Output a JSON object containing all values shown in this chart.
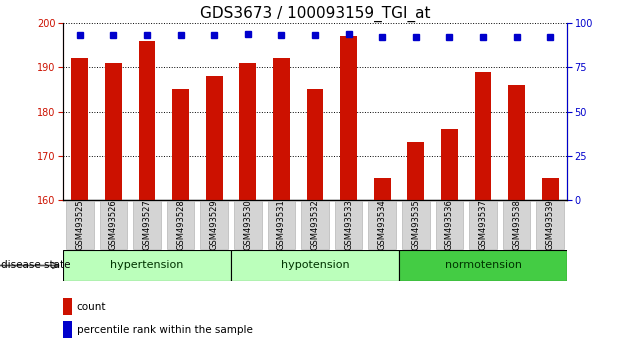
{
  "title": "GDS3673 / 100093159_TGI_at",
  "samples": [
    "GSM493525",
    "GSM493526",
    "GSM493527",
    "GSM493528",
    "GSM493529",
    "GSM493530",
    "GSM493531",
    "GSM493532",
    "GSM493533",
    "GSM493534",
    "GSM493535",
    "GSM493536",
    "GSM493537",
    "GSM493538",
    "GSM493539"
  ],
  "counts": [
    192,
    191,
    196,
    185,
    188,
    191,
    192,
    185,
    197,
    165,
    173,
    176,
    189,
    186,
    165
  ],
  "percentiles": [
    93,
    93,
    93,
    93,
    93,
    94,
    93,
    93,
    94,
    92,
    92,
    92,
    92,
    92,
    92
  ],
  "ylim_left": [
    160,
    200
  ],
  "ylim_right": [
    0,
    100
  ],
  "yticks_left": [
    160,
    170,
    180,
    190,
    200
  ],
  "yticks_right": [
    0,
    25,
    50,
    75,
    100
  ],
  "bar_color": "#cc1100",
  "dot_color": "#0000cc",
  "bar_width": 0.5,
  "background_color": "#ffffff",
  "title_fontsize": 11,
  "tick_fontsize": 7,
  "disease_state_label": "disease state",
  "legend_count": "count",
  "legend_percentile": "percentile rank within the sample",
  "group_hypertension_color": "#bbffbb",
  "group_hypotension_color": "#bbffbb",
  "group_normotension_color": "#44cc44",
  "groups": [
    {
      "label": "hypertension",
      "start": 0,
      "end": 4
    },
    {
      "label": "hypotension",
      "start": 5,
      "end": 9
    },
    {
      "label": "normotension",
      "start": 10,
      "end": 14
    }
  ]
}
